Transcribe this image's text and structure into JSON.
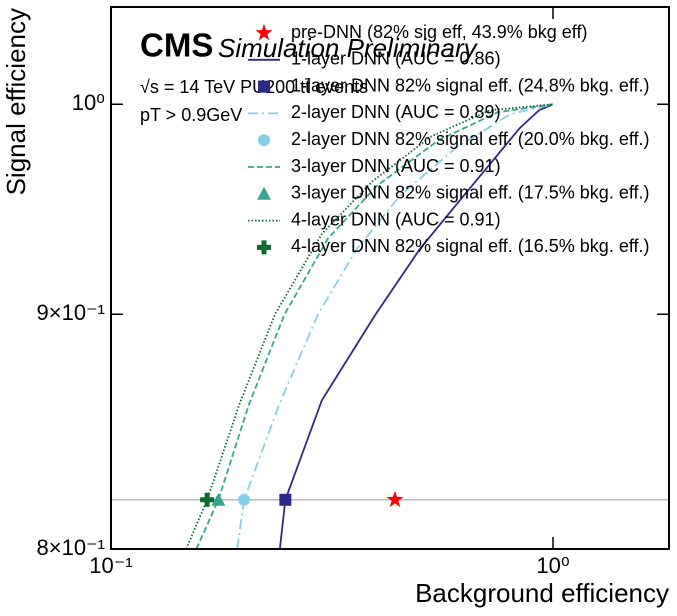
{
  "chart_data": {
    "type": "line",
    "annotations": {
      "cms": "CMS",
      "preliminary": "Simulation Preliminary",
      "energy": "√s = 14 TeV PU200 tt̄ events",
      "cut": "pT > 0.9GeV"
    },
    "xlabel": "Background efficiency",
    "ylabel": "Signal efficiency",
    "xscale": "log",
    "yscale": "log",
    "xlim": [
      0.1,
      1.83
    ],
    "ylim": [
      0.8,
      1.05
    ],
    "xticks": [
      {
        "value": 0.1,
        "label": "10⁻¹"
      },
      {
        "value": 1,
        "label": "10⁰"
      }
    ],
    "yticks": [
      {
        "value": 0.8,
        "label": "8×10⁻¹"
      },
      {
        "value": 0.9,
        "label": "9×10⁻¹"
      },
      {
        "value": 1,
        "label": "10⁰"
      }
    ],
    "hline": 0.82,
    "series": [
      {
        "name": "pre-DNN (82% sig eff, 43.9% bkg eff)",
        "color": "#ff0000",
        "kind": "point",
        "marker": "star",
        "x": [
          0.439
        ],
        "y": [
          0.82
        ]
      },
      {
        "name": "1-layer DNN (AUC = 0.86)",
        "color": "#2b2a84",
        "kind": "line",
        "dash": "solid",
        "x": [
          0.241,
          0.248,
          0.3,
          0.397,
          0.5,
          0.616,
          0.75,
          0.84,
          0.93,
          1.0
        ],
        "y": [
          0.8,
          0.82,
          0.862,
          0.9,
          0.93,
          0.953,
          0.975,
          0.988,
          0.997,
          1.0
        ]
      },
      {
        "name": "1-layer DNN 82% signal eff. (24.8% bkg. eff.)",
        "color": "#2b2a84",
        "kind": "point",
        "marker": "square",
        "x": [
          0.248
        ],
        "y": [
          0.82
        ]
      },
      {
        "name": "2-layer DNN (AUC = 0.89)",
        "color": "#87ceeb",
        "kind": "line",
        "dash": "dashdot",
        "x": [
          0.193,
          0.2,
          0.24,
          0.294,
          0.36,
          0.45,
          0.6,
          0.8,
          1.0
        ],
        "y": [
          0.8,
          0.82,
          0.86,
          0.9,
          0.93,
          0.955,
          0.978,
          0.995,
          1.0
        ]
      },
      {
        "name": "2-layer DNN 82% signal eff. (20.0% bkg. eff.)",
        "color": "#87ceeb",
        "kind": "point",
        "marker": "circle",
        "x": [
          0.2
        ],
        "y": [
          0.82
        ]
      },
      {
        "name": "3-layer DNN (AUC = 0.91)",
        "color": "#3aa58f",
        "kind": "line",
        "dash": "dashed",
        "x": [
          0.156,
          0.175,
          0.205,
          0.247,
          0.31,
          0.4,
          0.55,
          0.75,
          1.0
        ],
        "y": [
          0.8,
          0.82,
          0.86,
          0.9,
          0.935,
          0.96,
          0.982,
          0.996,
          1.0
        ]
      },
      {
        "name": "3-layer DNN 82% signal eff. (17.5% bkg. eff.)",
        "color": "#3aa58f",
        "kind": "point",
        "marker": "triangle",
        "x": [
          0.175
        ],
        "y": [
          0.82
        ]
      },
      {
        "name": "4-layer DNN (AUC = 0.91)",
        "color": "#0b6b2e",
        "kind": "line",
        "dash": "dotted",
        "x": [
          0.148,
          0.165,
          0.195,
          0.235,
          0.3,
          0.39,
          0.53,
          0.72,
          1.0
        ],
        "y": [
          0.8,
          0.82,
          0.86,
          0.9,
          0.937,
          0.962,
          0.984,
          0.997,
          1.0
        ]
      },
      {
        "name": "4-layer DNN 82% signal eff. (16.5% bkg. eff.)",
        "color": "#0b6b2e",
        "kind": "point",
        "marker": "plus",
        "x": [
          0.165
        ],
        "y": [
          0.82
        ]
      }
    ]
  }
}
